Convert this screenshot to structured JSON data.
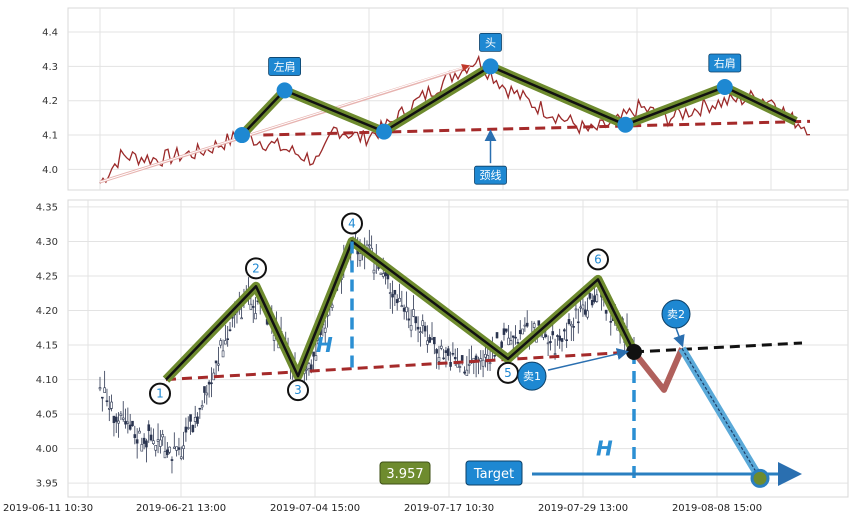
{
  "chart_data": [
    {
      "type": "line",
      "y_ticks": [
        "4.0",
        "4.1",
        "4.2",
        "4.3",
        "4.4"
      ],
      "ylim": [
        3.94,
        4.47
      ],
      "grid": true,
      "neckline": {
        "start": [
          0.05,
          4.1
        ],
        "end": [
          1.0,
          4.14
        ]
      },
      "pattern_points": [
        {
          "label": "左肩",
          "x": 0.26,
          "y": 4.23
        },
        {
          "label": "头",
          "x": 0.55,
          "y": 4.3
        },
        {
          "label": "右肩",
          "x": 0.88,
          "y": 4.24
        }
      ],
      "pattern_lows": [
        {
          "x": 0.2,
          "y": 4.1
        },
        {
          "x": 0.4,
          "y": 4.11
        },
        {
          "x": 0.74,
          "y": 4.13
        },
        {
          "x": 0.98,
          "y": 4.14
        }
      ],
      "callout": {
        "label": "颈线",
        "x": 0.55,
        "y": 4.12
      },
      "colors": {
        "price": "#9b2a2a",
        "neckline": "#a52a2a",
        "pattern": "#6e8b2e",
        "label": "#1e88d2"
      }
    },
    {
      "type": "bar",
      "subtype": "ohlc-candles",
      "y_ticks": [
        "3.95",
        "4.00",
        "4.05",
        "4.10",
        "4.15",
        "4.20",
        "4.25",
        "4.30",
        "4.35"
      ],
      "ylim": [
        3.93,
        4.36
      ],
      "x_ticks": [
        "2019-06-11 10:30",
        "2019-06-21 13:00",
        "2019-07-04 15:00",
        "2019-07-17 10:30",
        "2019-07-29 13:00",
        "2019-08-08 15:00"
      ],
      "grid": true,
      "waves": [
        {
          "label": "1",
          "x": 0.11,
          "y": 4.1
        },
        {
          "label": "2",
          "x": 0.26,
          "y": 4.235
        },
        {
          "label": "3",
          "x": 0.33,
          "y": 4.105
        },
        {
          "label": "4",
          "x": 0.42,
          "y": 4.3
        },
        {
          "label": "5",
          "x": 0.68,
          "y": 4.13
        },
        {
          "label": "6",
          "x": 0.83,
          "y": 4.245
        },
        {
          "x": 0.89,
          "y": 4.14
        }
      ],
      "neckline": {
        "start": [
          0.11,
          4.1
        ],
        "end": [
          0.89,
          4.14
        ]
      },
      "neckline_ext_end": [
        1.0,
        4.153
      ],
      "height_label": "H",
      "sell_points": [
        {
          "label": "卖1",
          "x": 0.72,
          "y": 4.105
        },
        {
          "label": "卖2",
          "x": 0.96,
          "y": 4.195
        }
      ],
      "projection": [
        {
          "x": 0.89,
          "y": 4.14
        },
        {
          "x": 0.94,
          "y": 4.085
        },
        {
          "x": 0.97,
          "y": 4.145
        },
        {
          "x": 1.1,
          "y": 3.957
        }
      ],
      "target": {
        "label": "Target",
        "value": "3.957"
      },
      "colors": {
        "wave": "#6e8b2e",
        "neckline": "#a52a2a",
        "projection": "#5aa9d8",
        "pullback": "#b0605c",
        "label": "#1e88d2",
        "target_box": "#6e8b2e"
      }
    }
  ]
}
